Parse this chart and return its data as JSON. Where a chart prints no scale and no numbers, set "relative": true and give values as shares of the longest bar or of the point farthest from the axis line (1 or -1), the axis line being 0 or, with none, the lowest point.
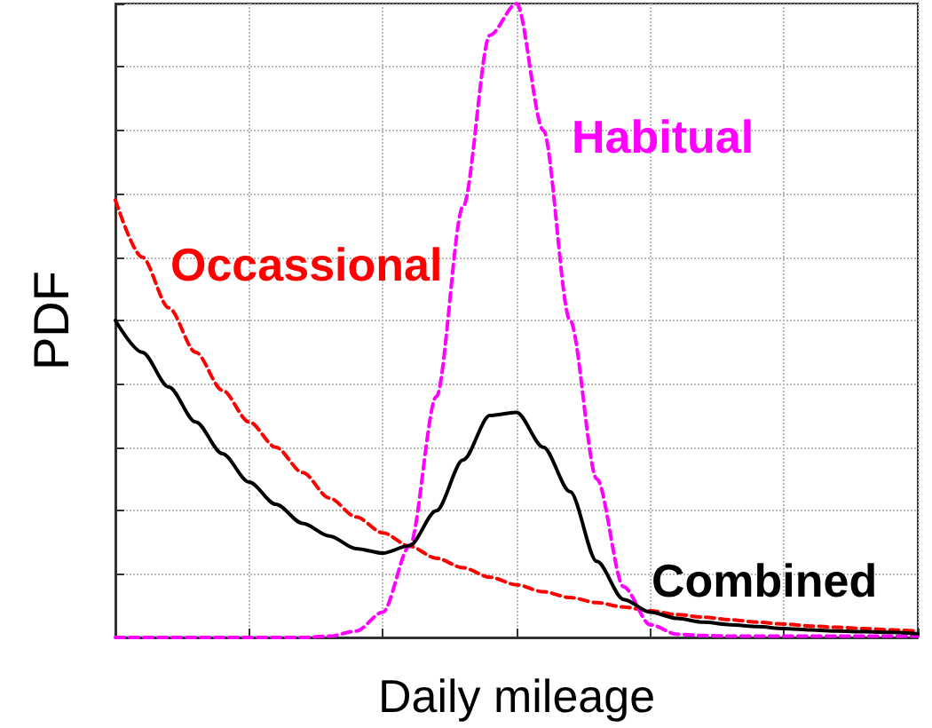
{
  "chart_data": {
    "type": "line",
    "relative": true,
    "xlabel": "Daily mileage",
    "ylabel": "PDF",
    "grid": true,
    "legend": false,
    "marker": "none",
    "categories": [
      null,
      null,
      null,
      null,
      null,
      null,
      null,
      null,
      null,
      null,
      null,
      null,
      null,
      null,
      null,
      null,
      null,
      null,
      null,
      null,
      null,
      null,
      null,
      null,
      null,
      null,
      null,
      null,
      null,
      null,
      null
    ],
    "series": [
      {
        "name": "Occassional",
        "color": "#ff0000",
        "line_style": "dashed",
        "values": [
          0.69,
          0.6,
          0.52,
          0.45,
          0.39,
          0.34,
          0.3,
          0.26,
          0.22,
          0.19,
          0.165,
          0.144,
          0.125,
          0.11,
          0.095,
          0.083,
          0.072,
          0.063,
          0.055,
          0.048,
          0.042,
          0.036,
          0.032,
          0.028,
          0.024,
          0.021,
          0.018,
          0.016,
          0.014,
          0.012,
          0.01
        ]
      },
      {
        "name": "Habitual",
        "color": "#ff00ff",
        "line_style": "dashed",
        "values": [
          0,
          0,
          0,
          0,
          0,
          0,
          0,
          0,
          0.002,
          0.01,
          0.04,
          0.144,
          0.38,
          0.68,
          0.95,
          1,
          0.8,
          0.5,
          0.25,
          0.08,
          0.02,
          0.005,
          0.003,
          0.002,
          0.002,
          0.002,
          0.002,
          0.002,
          0.002,
          0.002,
          0.002
        ]
      },
      {
        "name": "Combined",
        "color": "#000000",
        "line_style": "solid",
        "values": [
          0.5,
          0.45,
          0.395,
          0.34,
          0.29,
          0.245,
          0.21,
          0.18,
          0.16,
          0.14,
          0.133,
          0.145,
          0.2,
          0.28,
          0.35,
          0.355,
          0.3,
          0.23,
          0.12,
          0.06,
          0.04,
          0.03,
          0.024,
          0.02,
          0.017,
          0.014,
          0.012,
          0.01,
          0.009,
          0.008,
          0.006
        ]
      }
    ]
  }
}
